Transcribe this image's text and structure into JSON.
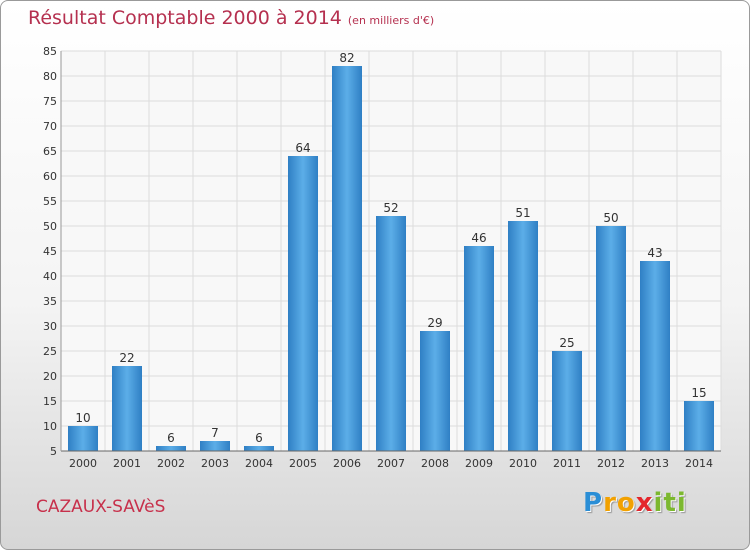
{
  "chart_data": {
    "type": "bar",
    "title": "Résultat Comptable 2000 à 2014",
    "subtitle": "(en milliers d'€)",
    "categories": [
      "2000",
      "2001",
      "2002",
      "2003",
      "2004",
      "2005",
      "2006",
      "2007",
      "2008",
      "2009",
      "2010",
      "2011",
      "2012",
      "2013",
      "2014"
    ],
    "values": [
      10,
      22,
      6,
      7,
      6,
      64,
      82,
      52,
      29,
      46,
      51,
      25,
      50,
      43,
      15
    ],
    "ylim": [
      5,
      85
    ],
    "yticks": [
      5,
      10,
      15,
      20,
      25,
      30,
      35,
      40,
      45,
      50,
      55,
      60,
      65,
      70,
      75,
      80,
      85
    ],
    "grid": true,
    "bar_color": "#3f8fd1",
    "title_color": "#b5304f"
  },
  "commune_name": "CAZAUX-SAVèS",
  "logo": {
    "letters": [
      "P",
      "r",
      "o",
      "x",
      "i",
      "t",
      "i"
    ],
    "colors": [
      "#2a8ed6",
      "#f2a100",
      "#f2a100",
      "#e4262c",
      "#7cb82f",
      "#7cb82f",
      "#7cb82f"
    ]
  }
}
